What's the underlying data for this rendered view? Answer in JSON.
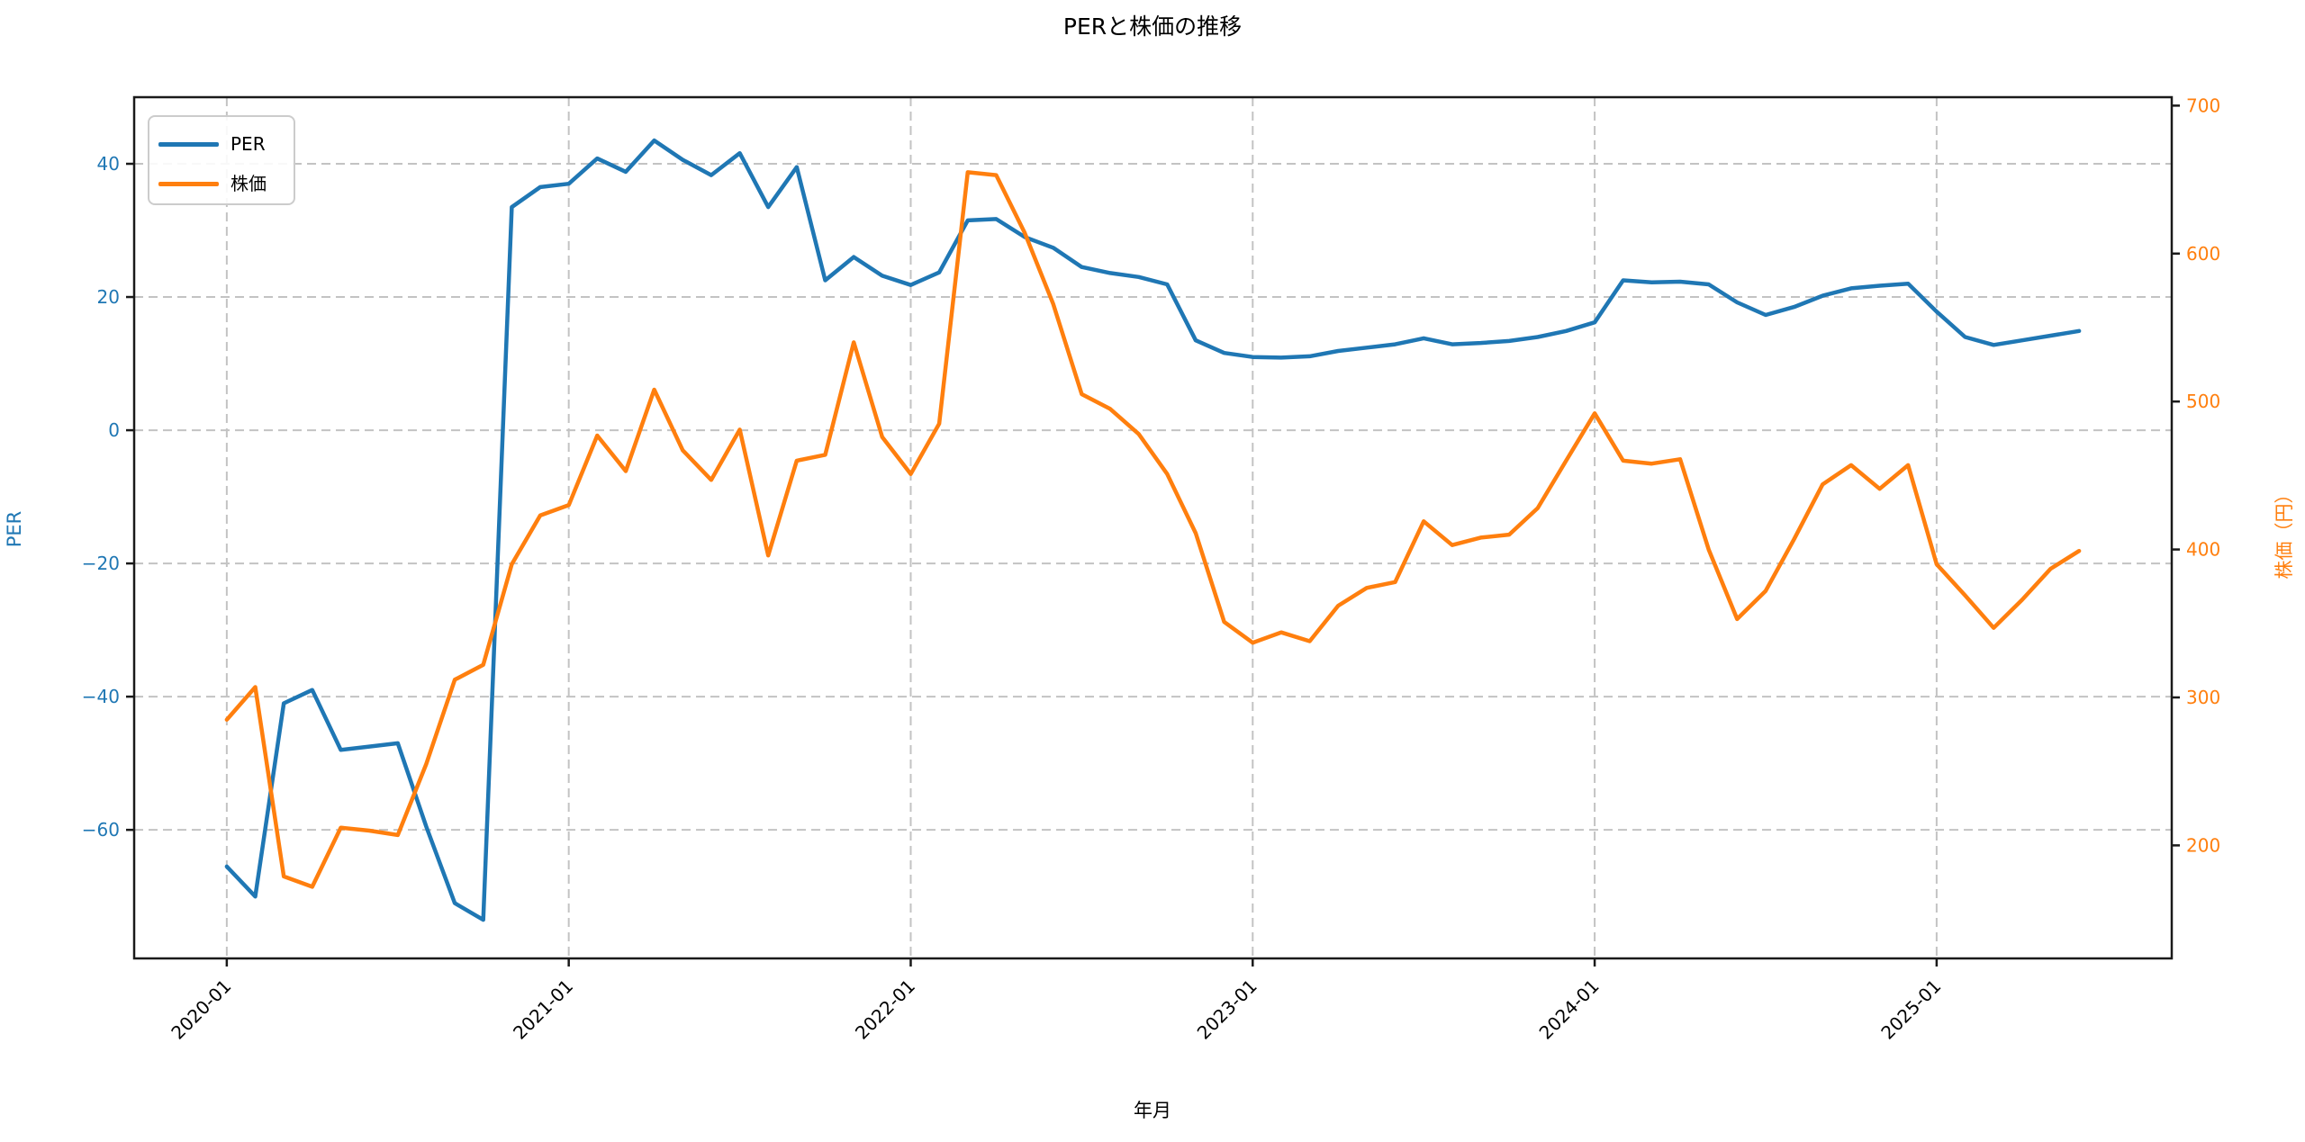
{
  "title": "PERと株価の推移",
  "xlabel": "年月",
  "left_axis": {
    "label": "PER",
    "color": "#1f77b4",
    "tick_labels": [
      "40",
      "20",
      "0",
      "−20",
      "−40",
      "−60"
    ],
    "tick_values": [
      40,
      20,
      0,
      -20,
      -40,
      -60
    ]
  },
  "right_axis": {
    "label": "株価（円）",
    "color": "#ff7f0e",
    "tick_labels": [
      "700",
      "600",
      "500",
      "400",
      "300",
      "200"
    ],
    "tick_values": [
      700,
      600,
      500,
      400,
      300,
      200
    ]
  },
  "legend": {
    "items": [
      "PER",
      "株価"
    ]
  },
  "chart_data": {
    "type": "line",
    "title": "PERと株価の推移",
    "xlabel": "年月",
    "grid": "dashed",
    "legend_position": "upper-left",
    "x": [
      "2020-01",
      "2020-02",
      "2020-03",
      "2020-04",
      "2020-05",
      "2020-06",
      "2020-07",
      "2020-08",
      "2020-09",
      "2020-10",
      "2020-11",
      "2020-12",
      "2021-01",
      "2021-02",
      "2021-03",
      "2021-04",
      "2021-05",
      "2021-06",
      "2021-07",
      "2021-08",
      "2021-09",
      "2021-10",
      "2021-11",
      "2021-12",
      "2022-01",
      "2022-02",
      "2022-03",
      "2022-04",
      "2022-05",
      "2022-06",
      "2022-07",
      "2022-08",
      "2022-09",
      "2022-10",
      "2022-11",
      "2022-12",
      "2023-01",
      "2023-02",
      "2023-03",
      "2023-04",
      "2023-05",
      "2023-06",
      "2023-07",
      "2023-08",
      "2023-09",
      "2023-10",
      "2023-11",
      "2023-12",
      "2024-01",
      "2024-02",
      "2024-03",
      "2024-04",
      "2024-05",
      "2024-06",
      "2024-07",
      "2024-08",
      "2024-09",
      "2024-10",
      "2024-11",
      "2024-12",
      "2025-01",
      "2025-02",
      "2025-03",
      "2025-04",
      "2025-05",
      "2025-06"
    ],
    "x_tick_labels": [
      "2020-01",
      "2021-01",
      "2022-01",
      "2023-01",
      "2024-01",
      "2025-01"
    ],
    "x_tick_indices": [
      0,
      12,
      24,
      36,
      48,
      60
    ],
    "left_axis_range": [
      -79.3,
      50.0
    ],
    "right_axis_range": [
      123.6,
      705.7
    ],
    "x_index_range": [
      -3.25,
      68.25
    ],
    "series": [
      {
        "name": "PER",
        "axis": "left",
        "color": "#1f77b4",
        "values": [
          -65.5,
          -70,
          -41,
          -39,
          -48,
          -47.5,
          -47,
          -59.5,
          -71,
          -73.5,
          33.5,
          36.5,
          37,
          40.8,
          38.8,
          43.5,
          40.6,
          38.3,
          41.6,
          33.5,
          39.5,
          22.5,
          26,
          23.2,
          21.8,
          23.7,
          31.5,
          31.7,
          29,
          27.4,
          24.5,
          23.6,
          23,
          21.9,
          13.5,
          11.6,
          11,
          10.9,
          11.1,
          11.9,
          12.4,
          12.9,
          13.8,
          12.9,
          13.1,
          13.4,
          14,
          14.9,
          16.2,
          22.5,
          22.2,
          22.3,
          21.9,
          19.2,
          17.3,
          18.5,
          20.2,
          21.3,
          21.7,
          22,
          17.8,
          14,
          12.8,
          13.5,
          14.2,
          14.9
        ]
      },
      {
        "name": "株価",
        "axis": "right",
        "color": "#ff7f0e",
        "values": [
          285,
          307,
          179,
          172,
          212,
          210,
          207,
          255,
          312,
          322,
          390,
          423,
          430,
          477,
          453,
          508,
          467,
          447,
          481,
          396,
          460,
          464,
          540,
          476,
          451,
          485,
          655,
          653,
          614,
          566,
          505,
          495,
          478,
          451,
          411,
          351,
          337,
          344,
          338,
          362,
          374,
          378,
          419,
          403,
          408,
          410,
          428,
          460,
          492,
          460,
          458,
          461,
          400,
          353,
          372,
          407,
          444,
          457,
          441,
          457,
          390,
          369,
          347,
          366,
          387,
          399
        ]
      }
    ]
  }
}
